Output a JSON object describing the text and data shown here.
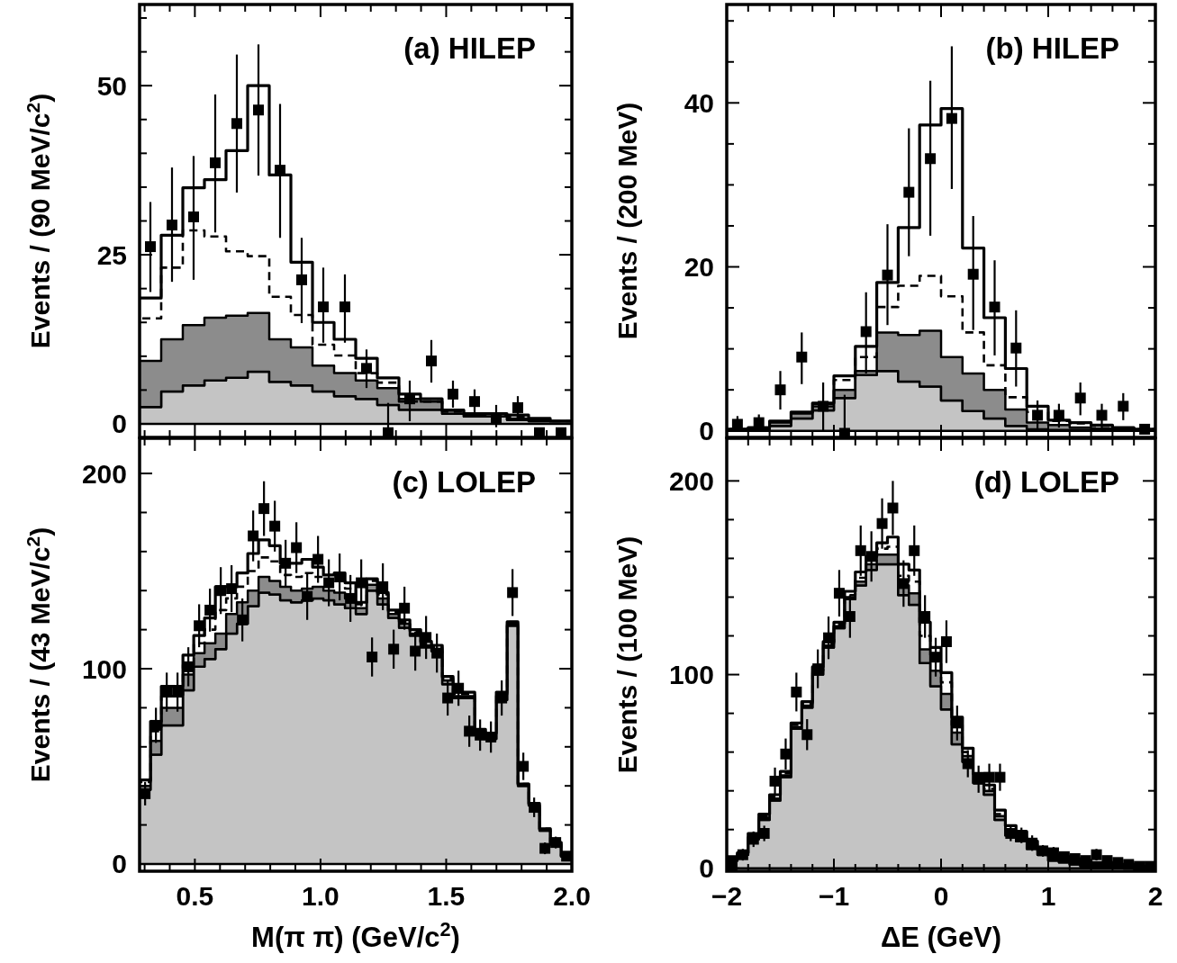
{
  "chart_data": [
    {
      "type": "step",
      "title": "(a) HILEP",
      "ylabel": "Events / (90 MeV/c$^{2}$)",
      "tick_labels": "y",
      "stacked": true,
      "xlim": [
        0.28,
        2.0
      ],
      "ylim": [
        -2,
        62
      ],
      "xticks": [
        {
          "value": 0.3,
          "label": null
        },
        {
          "value": 0.4,
          "label": null
        },
        0.5,
        {
          "value": 0.6,
          "label": null
        },
        {
          "value": 0.7,
          "label": null
        },
        {
          "value": 0.8,
          "label": null
        },
        {
          "value": 0.9,
          "label": null
        },
        1,
        {
          "value": 1.1,
          "label": null
        },
        {
          "value": 1.2,
          "label": null
        },
        {
          "value": 1.3,
          "label": null
        },
        {
          "value": 1.4,
          "label": null
        },
        1.5,
        {
          "value": 1.6,
          "label": null
        },
        {
          "value": 1.7,
          "label": null
        },
        {
          "value": 1.8,
          "label": null
        },
        {
          "value": 1.9,
          "label": null
        },
        2
      ],
      "yticks": [
        0,
        {
          "value": 5,
          "label": null
        },
        {
          "value": 10,
          "label": null
        },
        {
          "value": 15,
          "label": null
        },
        {
          "value": 20,
          "label": null
        },
        25,
        {
          "value": 30,
          "label": null
        },
        {
          "value": 35,
          "label": null
        },
        {
          "value": 40,
          "label": null
        },
        {
          "value": 45,
          "label": null
        },
        50,
        {
          "value": 55,
          "label": null
        },
        {
          "value": 60,
          "label": null
        }
      ],
      "x": [
        0.323,
        0.409,
        0.495,
        0.581,
        0.667,
        0.753,
        0.839,
        0.925,
        1.011,
        1.097,
        1.183,
        1.269,
        1.355,
        1.441,
        1.527,
        1.613,
        1.699,
        1.785,
        1.871,
        1.957
      ],
      "series": [
        {
          "type": "area",
          "color": "#c4c4c4",
          "values": [
            2.5,
            4.8,
            5.7,
            6.4,
            6.8,
            7.7,
            6.2,
            5.7,
            4.8,
            4.1,
            3.7,
            2.8,
            2.1,
            2.1,
            1.5,
            1.1,
            1.1,
            0.6,
            0.4,
            0.4
          ]
        },
        {
          "type": "area",
          "color": "#8c8c8c",
          "values": [
            6.8,
            7.7,
            8.9,
            9.3,
            9.2,
            8.7,
            6.3,
            5.6,
            3.8,
            3.4,
            2.7,
            2.5,
            1.6,
            1.2,
            0.6,
            0.2,
            0.0,
            0.2,
            0.2,
            0.0
          ]
        },
        {
          "type": "step",
          "color": "#000000",
          "line_style": "dashed",
          "values": [
            15.6,
            23.1,
            28.6,
            27.7,
            25.5,
            24.8,
            18.8,
            16.1,
            11.7,
            10.1,
            7.5,
            6.1,
            3.3,
            3.3,
            1.8,
            1.3,
            1.3,
            1.1,
            0.7,
            0.4
          ]
        },
        {
          "type": "step",
          "color": "#000000",
          "line_style": "solid",
          "values": [
            18.6,
            27.9,
            34.9,
            36.1,
            40.4,
            50.0,
            36.8,
            23.9,
            15.0,
            12.5,
            9.7,
            6.8,
            4.4,
            3.7,
            2.0,
            1.5,
            1.5,
            1.3,
            0.8,
            0.4
          ]
        },
        {
          "type": "scatter",
          "color": "#000000",
          "marker": "square",
          "values": [
            26.2,
            29.4,
            30.6,
            38.6,
            44.4,
            46.4,
            37.5,
            21.3,
            17.3,
            17.3,
            8.2,
            -1.3,
            3.7,
            9.3,
            4.4,
            3.3,
            0.7,
            2.4,
            -1.3,
            -1.3
          ],
          "errors": [
            [
              19.5,
              32.8
            ],
            [
              21.0,
              37.9
            ],
            [
              21.3,
              39.6
            ],
            [
              28.3,
              48.7
            ],
            [
              34.2,
              54.6
            ],
            [
              36.7,
              56.1
            ],
            [
              27.5,
              47.3
            ],
            [
              14.9,
              27.5
            ],
            [
              12.0,
              23.1
            ],
            [
              12.0,
              22.1
            ],
            [
              5.3,
              11.0
            ],
            [
              -1.3,
              3.1
            ],
            [
              0.4,
              6.4
            ],
            [
              6.1,
              12.4
            ],
            [
              2.4,
              6.4
            ],
            [
              1.5,
              5.1
            ],
            [
              -0.5,
              2.8
            ],
            [
              1.2,
              4.1
            ],
            null,
            null
          ]
        }
      ]
    },
    {
      "type": "step",
      "title": "(b) HILEP",
      "ylabel": "Events / (200 MeV)",
      "tick_labels": "y",
      "stacked": true,
      "xlim": [
        -2,
        2
      ],
      "ylim": [
        -0.8,
        52
      ],
      "xticks": [
        -2,
        {
          "value": -1.8,
          "label": null
        },
        {
          "value": -1.6,
          "label": null
        },
        {
          "value": -1.4,
          "label": null
        },
        {
          "value": -1.2,
          "label": null
        },
        -1,
        {
          "value": -0.8,
          "label": null
        },
        {
          "value": -0.6,
          "label": null
        },
        {
          "value": -0.4,
          "label": null
        },
        {
          "value": -0.2,
          "label": null
        },
        0,
        {
          "value": 0.2,
          "label": null
        },
        {
          "value": 0.4,
          "label": null
        },
        {
          "value": 0.6,
          "label": null
        },
        {
          "value": 0.8,
          "label": null
        },
        1,
        {
          "value": 1.2,
          "label": null
        },
        {
          "value": 1.4,
          "label": null
        },
        {
          "value": 1.6,
          "label": null
        },
        {
          "value": 1.8,
          "label": null
        },
        2
      ],
      "yticks": [
        0,
        {
          "value": 5,
          "label": null
        },
        {
          "value": 10,
          "label": null
        },
        {
          "value": 15,
          "label": null
        },
        20,
        {
          "value": 25,
          "label": null
        },
        {
          "value": 30,
          "label": null
        },
        {
          "value": 35,
          "label": null
        },
        40,
        {
          "value": 45,
          "label": null
        },
        {
          "value": 50,
          "label": null
        }
      ],
      "x": [
        -1.9,
        -1.7,
        -1.5,
        -1.3,
        -1.1,
        -0.9,
        -0.7,
        -0.5,
        -0.3,
        -0.1,
        0.1,
        0.3,
        0.5,
        0.7,
        0.9,
        1.1,
        1.3,
        1.5,
        1.7,
        1.9
      ],
      "series": [
        {
          "type": "area",
          "color": "#c4c4c4",
          "values": [
            0.1,
            0.1,
            0.6,
            1.5,
            2.5,
            4.0,
            6.8,
            7.3,
            6.0,
            5.4,
            3.7,
            2.4,
            1.5,
            0.6,
            0.2,
            0.1,
            0.1,
            0.1,
            0.1,
            0.1
          ]
        },
        {
          "type": "area",
          "color": "#8c8c8c",
          "values": [
            0,
            0.1,
            0.4,
            0.6,
            0.5,
            1.0,
            0.5,
            4.7,
            5.7,
            6.8,
            5.3,
            4.6,
            3.5,
            2.0,
            0.8,
            0.6,
            0.3,
            0.2,
            0.1,
            0
          ]
        },
        {
          "type": "step",
          "color": "#000000",
          "line_style": "dashed",
          "values": [
            0.2,
            0.3,
            1.1,
            2.2,
            3.3,
            6.2,
            9.0,
            15.1,
            17.7,
            18.9,
            16.4,
            12.0,
            8.0,
            4.1,
            2.3,
            1.2,
            0.9,
            0.6,
            0.3,
            0.2
          ]
        },
        {
          "type": "step",
          "color": "#000000",
          "line_style": "solid",
          "values": [
            0.2,
            0.4,
            1.2,
            2.3,
            3.4,
            6.7,
            10.3,
            18.1,
            24.8,
            37.3,
            39.3,
            22.3,
            13.8,
            7.6,
            3.0,
            1.3,
            1.0,
            0.7,
            0.4,
            0.2
          ]
        },
        {
          "type": "scatter",
          "color": "#000000",
          "marker": "square",
          "values": [
            0.8,
            1.0,
            5.0,
            9.0,
            3.0,
            -0.3,
            12.1,
            19.0,
            29.1,
            33.2,
            38.1,
            19.1,
            15.1,
            10.1,
            1.9,
            1.9,
            4.0,
            1.9,
            3.0,
            0.2
          ],
          "errors": [
            [
              0,
              1.8
            ],
            [
              0,
              2.0
            ],
            [
              2.6,
              7.3
            ],
            [
              5.7,
              12.0
            ],
            [
              -0.1,
              5.9
            ],
            [
              -0.8,
              4.4
            ],
            [
              7.0,
              16.9
            ],
            [
              12.9,
              25.2
            ],
            [
              21.3,
              36.9
            ],
            [
              23.8,
              42.7
            ],
            [
              29.5,
              46.9
            ],
            [
              12.3,
              26.2
            ],
            [
              9.2,
              20.8
            ],
            [
              5.4,
              14.7
            ],
            [
              0.2,
              3.7
            ],
            [
              0.4,
              3.3
            ],
            [
              1.9,
              5.9
            ],
            [
              0.4,
              3.3
            ],
            [
              1.3,
              4.6
            ],
            null
          ]
        }
      ]
    },
    {
      "type": "step",
      "title": "(c) LOLEP",
      "ylabel": "Events / (43 MeV/c$^{2}$)",
      "xlabel": "M(π π) (GeV/c$^{2}$)",
      "stacked": true,
      "xlim": [
        0.28,
        2.0
      ],
      "ylim": [
        -3.7,
        218
      ],
      "xticks": [
        {
          "value": 0.3,
          "label": null
        },
        {
          "value": 0.4,
          "label": null
        },
        {
          "value": 0.5,
          "label": "0.5"
        },
        {
          "value": 0.6,
          "label": null
        },
        {
          "value": 0.7,
          "label": null
        },
        {
          "value": 0.8,
          "label": null
        },
        {
          "value": 0.9,
          "label": null
        },
        {
          "value": 1.0,
          "label": "1.0"
        },
        {
          "value": 1.1,
          "label": null
        },
        {
          "value": 1.2,
          "label": null
        },
        {
          "value": 1.3,
          "label": null
        },
        {
          "value": 1.4,
          "label": null
        },
        {
          "value": 1.5,
          "label": "1.5"
        },
        {
          "value": 1.6,
          "label": null
        },
        {
          "value": 1.7,
          "label": null
        },
        {
          "value": 1.8,
          "label": null
        },
        {
          "value": 1.9,
          "label": null
        },
        {
          "value": 2.0,
          "label": "2.0"
        }
      ],
      "yticks": [
        0,
        {
          "value": 20,
          "label": null
        },
        {
          "value": 40,
          "label": null
        },
        {
          "value": 60,
          "label": null
        },
        {
          "value": 80,
          "label": null
        },
        100,
        {
          "value": 120,
          "label": null
        },
        {
          "value": 140,
          "label": null
        },
        {
          "value": 160,
          "label": null
        },
        {
          "value": 180,
          "label": null
        },
        200
      ],
      "x": [
        0.302,
        0.345,
        0.388,
        0.431,
        0.474,
        0.517,
        0.56,
        0.603,
        0.646,
        0.689,
        0.732,
        0.775,
        0.818,
        0.861,
        0.904,
        0.947,
        0.99,
        1.033,
        1.076,
        1.119,
        1.162,
        1.205,
        1.248,
        1.291,
        1.334,
        1.377,
        1.42,
        1.463,
        1.506,
        1.549,
        1.592,
        1.635,
        1.678,
        1.721,
        1.764,
        1.807,
        1.85,
        1.893,
        1.936,
        1.979
      ],
      "series": [
        {
          "type": "area",
          "color": "#c4c4c4",
          "values": [
            38,
            56,
            71,
            71,
            89,
            101,
            105,
            110,
            118,
            123,
            132,
            139,
            138,
            135,
            134,
            135,
            136,
            135,
            133,
            131,
            128,
            140,
            133,
            126,
            121,
            117,
            111,
            109,
            92,
            85,
            85,
            66,
            64,
            84,
            122,
            40,
            30,
            17,
            10,
            4
          ]
        },
        {
          "type": "area",
          "color": "#8c8c8c",
          "values": [
            2,
            7,
            9,
            9,
            8,
            7,
            8,
            8,
            10,
            11,
            8,
            8,
            7,
            7,
            6,
            6,
            6,
            5,
            6,
            5,
            3,
            3,
            3,
            2,
            2,
            1,
            1,
            1,
            2,
            1,
            1,
            1,
            1,
            2,
            1,
            0,
            0,
            0,
            0,
            0
          ]
        },
        {
          "type": "step",
          "color": "#000000",
          "line_style": "dashed",
          "values": [
            42,
            68,
            86,
            86,
            102,
            113,
            120,
            130,
            136,
            142,
            150,
            157,
            155,
            148,
            147,
            149,
            147,
            145,
            145,
            141,
            133,
            145,
            138,
            129,
            124,
            119,
            113,
            111,
            95,
            87,
            87,
            68,
            66,
            87,
            124,
            41,
            31,
            18,
            11,
            4
          ]
        },
        {
          "type": "step",
          "color": "#000000",
          "line_style": "solid",
          "values": [
            43,
            73,
            91,
            91,
            107,
            117,
            126,
            142,
            142,
            149,
            159,
            166,
            163,
            154,
            154,
            156,
            152,
            148,
            149,
            144,
            134,
            146,
            139,
            130,
            125,
            120,
            114,
            112,
            96,
            88,
            88,
            69,
            67,
            88,
            124,
            41,
            31,
            18,
            11,
            4
          ]
        },
        {
          "type": "scatter",
          "color": "#000000",
          "marker": "square",
          "values": [
            36,
            71,
            88,
            88,
            101,
            122,
            130,
            140,
            141,
            125,
            168,
            182,
            173,
            154,
            162,
            137,
            156,
            144,
            147,
            136,
            144,
            106,
            142,
            110,
            131,
            109,
            116,
            108,
            85,
            90,
            68,
            66,
            65,
            85,
            139,
            50,
            29,
            8,
            11,
            4
          ],
          "errors": [
            6,
            9,
            10,
            10,
            10,
            11,
            11,
            12,
            12,
            11,
            13,
            14,
            13,
            12,
            13,
            12,
            12,
            12,
            12,
            12,
            12,
            10,
            12,
            10,
            11,
            10,
            11,
            10,
            9,
            9,
            8,
            8,
            8,
            9,
            12,
            7,
            5,
            3,
            3,
            2
          ]
        }
      ]
    },
    {
      "type": "step",
      "title": "(d) LOLEP",
      "ylabel": "Events / (100 MeV)",
      "xlabel": "ΔE (GeV)",
      "stacked": true,
      "xlim": [
        -2,
        2
      ],
      "ylim": [
        -1.5,
        222
      ],
      "xticks": [
        {
          "value": -2,
          "label": "−2"
        },
        {
          "value": -1.8,
          "label": null
        },
        {
          "value": -1.6,
          "label": null
        },
        {
          "value": -1.4,
          "label": null
        },
        {
          "value": -1.2,
          "label": null
        },
        {
          "value": -1,
          "label": "−1"
        },
        {
          "value": -0.8,
          "label": null
        },
        {
          "value": -0.6,
          "label": null
        },
        {
          "value": -0.4,
          "label": null
        },
        {
          "value": -0.2,
          "label": null
        },
        0,
        {
          "value": 0.2,
          "label": null
        },
        {
          "value": 0.4,
          "label": null
        },
        {
          "value": 0.6,
          "label": null
        },
        {
          "value": 0.8,
          "label": null
        },
        1,
        {
          "value": 1.2,
          "label": null
        },
        {
          "value": 1.4,
          "label": null
        },
        {
          "value": 1.6,
          "label": null
        },
        {
          "value": 1.8,
          "label": null
        },
        2
      ],
      "yticks": [
        0,
        {
          "value": 20,
          "label": null
        },
        {
          "value": 40,
          "label": null
        },
        {
          "value": 60,
          "label": null
        },
        {
          "value": 80,
          "label": null
        },
        100,
        {
          "value": 120,
          "label": null
        },
        {
          "value": 140,
          "label": null
        },
        {
          "value": 160,
          "label": null
        },
        {
          "value": 180,
          "label": null
        },
        200
      ],
      "x": [
        -1.95,
        -1.85,
        -1.75,
        -1.65,
        -1.55,
        -1.45,
        -1.35,
        -1.25,
        -1.15,
        -1.05,
        -0.95,
        -0.85,
        -0.75,
        -0.65,
        -0.55,
        -0.45,
        -0.35,
        -0.25,
        -0.15,
        -0.05,
        0.05,
        0.15,
        0.25,
        0.35,
        0.45,
        0.55,
        0.65,
        0.75,
        0.85,
        0.95,
        1.05,
        1.15,
        1.25,
        1.35,
        1.45,
        1.55,
        1.65,
        1.75,
        1.85,
        1.95
      ],
      "series": [
        {
          "type": "area",
          "color": "#c4c4c4",
          "values": [
            4,
            7,
            15,
            25,
            35,
            47,
            72,
            83,
            100,
            114,
            124,
            139,
            146,
            154,
            157,
            157,
            141,
            136,
            106,
            94,
            82,
            64,
            55,
            44,
            38,
            25,
            17,
            14,
            10,
            7,
            4,
            3,
            2,
            1,
            1,
            1,
            1,
            0,
            0,
            0
          ]
        },
        {
          "type": "area",
          "color": "#8c8c8c",
          "values": [
            1,
            1,
            1,
            1,
            1,
            1,
            1,
            1,
            1,
            1,
            1,
            1,
            2,
            3,
            5,
            5,
            5,
            6,
            7,
            8,
            8,
            6,
            3,
            2,
            2,
            2,
            2,
            1,
            1,
            1,
            1,
            1,
            1,
            1,
            1,
            1,
            0,
            1,
            1,
            1
          ]
        },
        {
          "type": "step",
          "color": "#000000",
          "line_style": "dashed",
          "values": [
            5,
            8,
            17,
            27,
            37,
            49,
            74,
            85,
            102,
            116,
            126,
            141,
            150,
            159,
            165,
            166,
            151,
            148,
            120,
            108,
            96,
            74,
            60,
            47,
            41,
            28,
            20,
            16,
            12,
            9,
            6,
            5,
            4,
            3,
            3,
            2,
            2,
            1,
            1,
            1
          ]
        },
        {
          "type": "step",
          "color": "#000000",
          "line_style": "solid",
          "values": [
            6,
            8,
            18,
            28,
            38,
            50,
            75,
            86,
            104,
            117,
            127,
            143,
            153,
            161,
            168,
            171,
            157,
            154,
            127,
            114,
            101,
            78,
            62,
            49,
            43,
            30,
            22,
            19,
            14,
            10,
            7,
            6,
            5,
            4,
            3,
            3,
            2,
            2,
            1,
            1
          ]
        },
        {
          "type": "scatter",
          "color": "#000000",
          "marker": "square",
          "values": [
            1,
            7,
            15,
            18,
            45,
            59,
            91,
            69,
            103,
            119,
            142,
            130,
            164,
            161,
            178,
            186,
            147,
            164,
            130,
            109,
            117,
            75,
            54,
            46,
            47,
            47,
            18,
            17,
            13,
            9,
            8,
            6,
            5,
            4,
            7,
            4,
            3,
            2,
            1,
            1
          ],
          "errors": [
            1,
            3,
            4,
            4,
            7,
            8,
            10,
            8,
            10,
            11,
            12,
            11,
            13,
            13,
            13,
            14,
            12,
            13,
            11,
            10,
            11,
            9,
            7,
            7,
            7,
            7,
            4,
            4,
            4,
            3,
            3,
            2,
            2,
            2,
            3,
            2,
            2,
            1,
            1,
            1
          ]
        }
      ]
    }
  ]
}
